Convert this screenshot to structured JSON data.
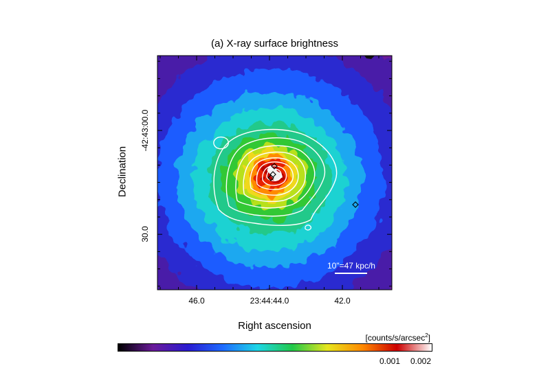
{
  "chart_data": {
    "type": "heatmap",
    "title": "(a) X-ray surface brightness",
    "xlabel": "Right ascension",
    "ylabel": "Declination",
    "x_ticks": [
      "46.0",
      "23:44:44.0",
      "42.0"
    ],
    "y_ticks": [
      "-42:43:00.0",
      "30.0"
    ],
    "scale_bar_label": "10\"=47 kpc/h",
    "colorbar": {
      "unit_label": "[counts/s/arcsec",
      "unit_exponent": "2",
      "unit_close": "]",
      "ticks": [
        {
          "label": "0.001",
          "value": 0.001
        },
        {
          "label": "0.002",
          "value": 0.002
        }
      ],
      "colormap": [
        "#000000",
        "#6a1b9a",
        "#2a1bd0",
        "#1e6bff",
        "#1ed6e6",
        "#22c94a",
        "#e6e61e",
        "#ff8a00",
        "#cc0000",
        "#ffffff"
      ]
    },
    "contour_levels": 8,
    "markers": "black diamonds (point sources)"
  }
}
